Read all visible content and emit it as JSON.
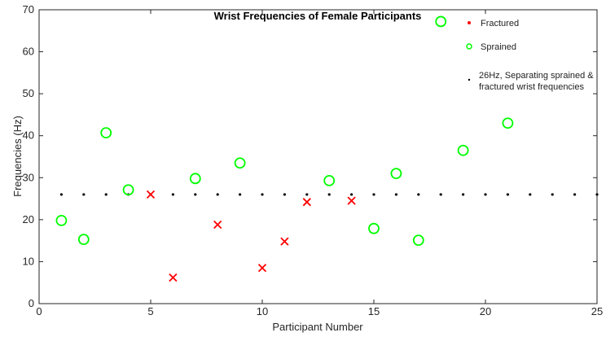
{
  "chart_data": {
    "type": "scatter",
    "title": "Wrist Frequencies of Female Participants",
    "xlabel": "Participant Number",
    "ylabel": "Frequencies (Hz)",
    "xlim": [
      0,
      25
    ],
    "ylim": [
      0,
      70
    ],
    "xticks": [
      0,
      5,
      10,
      15,
      20,
      25
    ],
    "yticks": [
      0,
      10,
      20,
      30,
      40,
      50,
      60,
      70
    ],
    "grid": false,
    "legend_position": "top-right",
    "series": [
      {
        "name": "Fractured",
        "marker": "x",
        "color": "#ff0000",
        "points": [
          {
            "x": 5,
            "y": 26
          },
          {
            "x": 6,
            "y": 6.2
          },
          {
            "x": 8,
            "y": 18.8
          },
          {
            "x": 10,
            "y": 8.5
          },
          {
            "x": 11,
            "y": 14.8
          },
          {
            "x": 12,
            "y": 24.2
          },
          {
            "x": 14,
            "y": 24.5
          }
        ]
      },
      {
        "name": "Sprained",
        "marker": "o",
        "color": "#00ff00",
        "points": [
          {
            "x": 1,
            "y": 19.8
          },
          {
            "x": 2,
            "y": 15.3
          },
          {
            "x": 3,
            "y": 40.7
          },
          {
            "x": 4,
            "y": 27.1
          },
          {
            "x": 7,
            "y": 29.8
          },
          {
            "x": 9,
            "y": 33.5
          },
          {
            "x": 13,
            "y": 29.3
          },
          {
            "x": 15,
            "y": 17.9
          },
          {
            "x": 16,
            "y": 31
          },
          {
            "x": 17,
            "y": 15.1
          },
          {
            "x": 18,
            "y": 67.2
          },
          {
            "x": 19,
            "y": 36.5
          },
          {
            "x": 21,
            "y": 43
          }
        ]
      },
      {
        "name": "26Hz, Separating sprained & fractured wrist frequencies",
        "legend_lines": [
          "26Hz, Separating sprained &",
          "fractured wrist frequencies"
        ],
        "marker": ".",
        "color": "#000000",
        "threshold_y": 26,
        "x_values": [
          1,
          2,
          3,
          4,
          5,
          6,
          7,
          8,
          9,
          10,
          11,
          12,
          13,
          14,
          15,
          16,
          17,
          18,
          19,
          20,
          21,
          22,
          23,
          24,
          25
        ]
      }
    ]
  }
}
